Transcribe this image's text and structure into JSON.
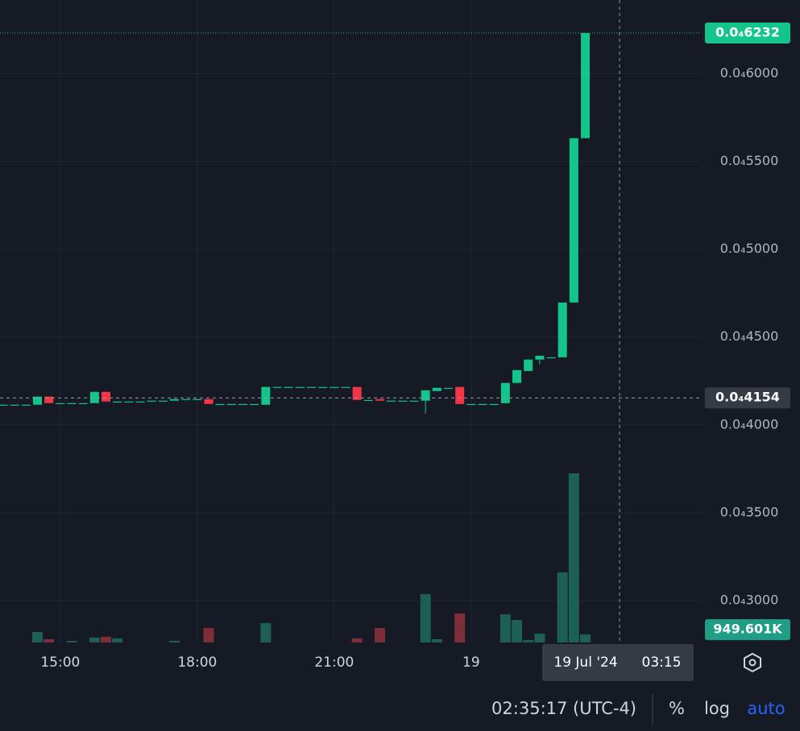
{
  "chart_data": {
    "type": "candlestick",
    "x": [
      "13:45",
      "14:00",
      "14:15",
      "14:30",
      "14:45",
      "15:00",
      "15:15",
      "15:30",
      "15:45",
      "16:00",
      "16:15",
      "16:30",
      "16:45",
      "17:00",
      "17:15",
      "17:30",
      "17:45",
      "18:00",
      "18:15",
      "18:30",
      "18:45",
      "19:00",
      "19:15",
      "19:30",
      "19:45",
      "20:00",
      "20:15",
      "20:30",
      "20:45",
      "21:00",
      "21:15",
      "21:30",
      "21:45",
      "22:00",
      "22:15",
      "22:30",
      "22:45",
      "23:00",
      "23:15",
      "23:30",
      "23:45",
      "00:00",
      "00:15",
      "00:30",
      "00:45",
      "01:00",
      "01:15",
      "01:30",
      "01:45",
      "02:00",
      "02:15",
      "02:30"
    ],
    "open": [
      4.115e-05,
      4.115e-05,
      4.115e-05,
      4.115e-05,
      4.161e-05,
      4.124e-05,
      4.124e-05,
      4.124e-05,
      4.124e-05,
      4.188e-05,
      4.133e-05,
      4.133e-05,
      4.133e-05,
      4.138e-05,
      4.138e-05,
      4.138e-05,
      4.147e-05,
      4.147e-05,
      4.147e-05,
      4.119e-05,
      4.119e-05,
      4.119e-05,
      4.119e-05,
      4.115e-05,
      4.216e-05,
      4.216e-05,
      4.216e-05,
      4.216e-05,
      4.216e-05,
      4.216e-05,
      4.216e-05,
      4.216e-05,
      4.142e-05,
      4.147e-05,
      4.138e-05,
      4.138e-05,
      4.138e-05,
      4.138e-05,
      4.193e-05,
      4.211e-05,
      4.216e-05,
      4.119e-05,
      4.119e-05,
      4.119e-05,
      4.124e-05,
      4.239e-05,
      4.307e-05,
      4.372e-05,
      4.385e-05,
      4.385e-05,
      4.697e-05,
      5.633e-05
    ],
    "high": [
      4.115e-05,
      4.115e-05,
      4.115e-05,
      4.161e-05,
      4.161e-05,
      4.124e-05,
      4.124e-05,
      4.124e-05,
      4.188e-05,
      4.188e-05,
      4.133e-05,
      4.133e-05,
      4.133e-05,
      4.138e-05,
      4.138e-05,
      4.147e-05,
      4.147e-05,
      4.147e-05,
      4.147e-05,
      4.119e-05,
      4.119e-05,
      4.119e-05,
      4.119e-05,
      4.216e-05,
      4.216e-05,
      4.216e-05,
      4.216e-05,
      4.216e-05,
      4.216e-05,
      4.216e-05,
      4.216e-05,
      4.216e-05,
      4.142e-05,
      4.147e-05,
      4.138e-05,
      4.138e-05,
      4.138e-05,
      4.197e-05,
      4.211e-05,
      4.211e-05,
      4.216e-05,
      4.119e-05,
      4.119e-05,
      4.119e-05,
      4.239e-05,
      4.312e-05,
      4.372e-05,
      4.394e-05,
      4.385e-05,
      4.697e-05,
      5.633e-05,
      6.232e-05
    ],
    "low": [
      4.115e-05,
      4.115e-05,
      4.115e-05,
      4.115e-05,
      4.124e-05,
      4.124e-05,
      4.124e-05,
      4.124e-05,
      4.124e-05,
      4.133e-05,
      4.133e-05,
      4.133e-05,
      4.133e-05,
      4.138e-05,
      4.138e-05,
      4.138e-05,
      4.147e-05,
      4.147e-05,
      4.119e-05,
      4.119e-05,
      4.119e-05,
      4.119e-05,
      4.119e-05,
      4.115e-05,
      4.216e-05,
      4.216e-05,
      4.216e-05,
      4.216e-05,
      4.216e-05,
      4.216e-05,
      4.216e-05,
      4.142e-05,
      4.142e-05,
      4.138e-05,
      4.138e-05,
      4.138e-05,
      4.138e-05,
      4.064e-05,
      4.193e-05,
      4.211e-05,
      4.119e-05,
      4.119e-05,
      4.119e-05,
      4.119e-05,
      4.124e-05,
      4.239e-05,
      4.307e-05,
      4.344e-05,
      4.385e-05,
      4.385e-05,
      4.697e-05,
      5.633e-05
    ],
    "close": [
      4.115e-05,
      4.115e-05,
      4.115e-05,
      4.161e-05,
      4.124e-05,
      4.124e-05,
      4.124e-05,
      4.124e-05,
      4.188e-05,
      4.133e-05,
      4.133e-05,
      4.133e-05,
      4.133e-05,
      4.138e-05,
      4.138e-05,
      4.147e-05,
      4.147e-05,
      4.147e-05,
      4.119e-05,
      4.119e-05,
      4.119e-05,
      4.119e-05,
      4.119e-05,
      4.216e-05,
      4.216e-05,
      4.216e-05,
      4.216e-05,
      4.216e-05,
      4.216e-05,
      4.216e-05,
      4.216e-05,
      4.142e-05,
      4.142e-05,
      4.138e-05,
      4.138e-05,
      4.138e-05,
      4.138e-05,
      4.197e-05,
      4.211e-05,
      4.211e-05,
      4.119e-05,
      4.119e-05,
      4.119e-05,
      4.119e-05,
      4.239e-05,
      4.312e-05,
      4.372e-05,
      4.394e-05,
      4.385e-05,
      4.697e-05,
      5.633e-05,
      6.232e-05
    ],
    "volume": [
      0,
      0,
      0,
      1243000,
      383000,
      0,
      191000,
      0,
      574000,
      670000,
      478000,
      0,
      0,
      0,
      0,
      191000,
      0,
      0,
      1722000,
      0,
      0,
      0,
      0,
      2296000,
      0,
      0,
      0,
      0,
      0,
      0,
      0,
      478000,
      0,
      1722000,
      0,
      0,
      0,
      5739000,
      383000,
      0,
      3443000,
      0,
      0,
      0,
      3348000,
      2678000,
      287000,
      1052000,
      0,
      8322000,
      20087000,
      949601
    ],
    "up_color": "#13c48b",
    "down_color": "#f23645",
    "volume_up_color": "#1d5f55",
    "volume_down_color": "#7c2f39",
    "ylim": [
      2.761e-05,
      6.42e-05
    ],
    "yticks": [
      {
        "value": 3e-05,
        "label": "0.0₄3000"
      },
      {
        "value": 3.5e-05,
        "label": "0.0₄3500"
      },
      {
        "value": 4e-05,
        "label": "0.0₄4000"
      },
      {
        "value": 4.5e-05,
        "label": "0.0₄4500"
      },
      {
        "value": 5e-05,
        "label": "0.0₄5000"
      },
      {
        "value": 5.5e-05,
        "label": "0.0₄5500"
      },
      {
        "value": 6e-05,
        "label": "0.0₄6000"
      }
    ],
    "volume_ylim": [
      0,
      22000000
    ],
    "xticks": [
      "15:00",
      "18:00",
      "21:00",
      {
        "value": "00:00",
        "label": "19"
      }
    ],
    "grid": true,
    "last_price": {
      "value": 6.232e-05,
      "label": "0.0₄6232"
    },
    "last_volume": {
      "value": 949601,
      "label": "949.601K"
    },
    "crosshair": {
      "price": {
        "value": 4.154e-05,
        "label": "0.0₄4154"
      },
      "date": "19 Jul '24",
      "time": "03:15"
    }
  },
  "toolbar": {
    "clock": "02:35:17 (UTC-4)",
    "percent": "%",
    "log": "log",
    "auto": "auto"
  }
}
